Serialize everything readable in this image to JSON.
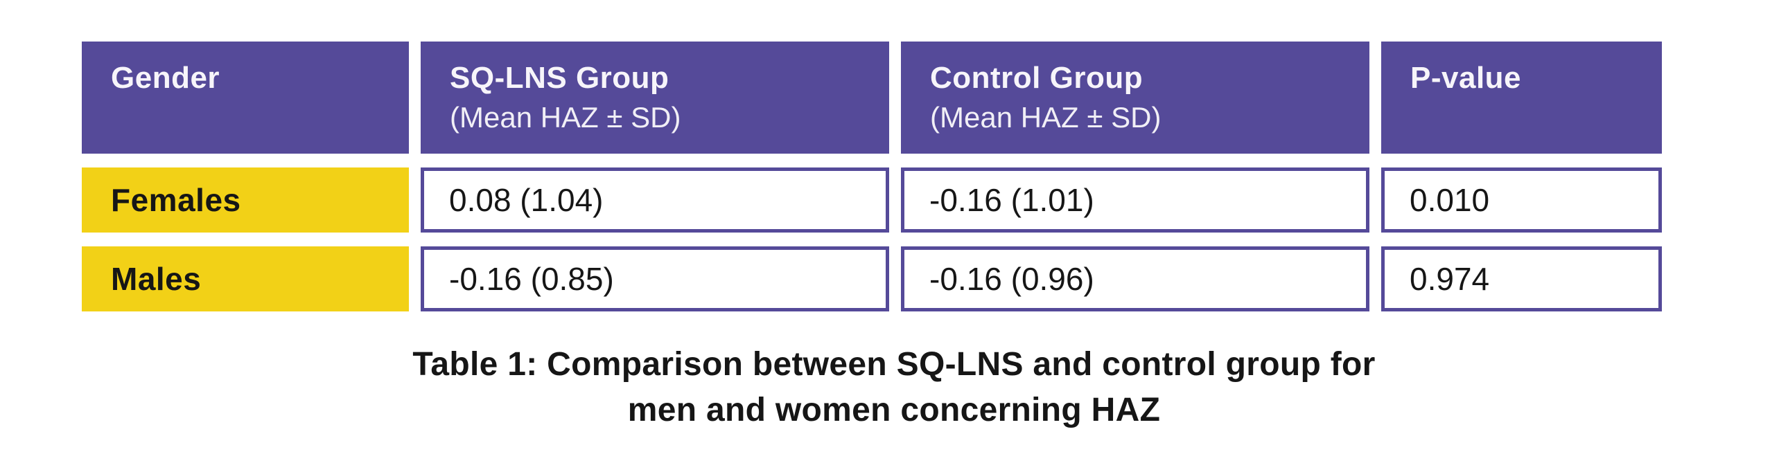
{
  "colors": {
    "page-bg": "#ffffff",
    "header-bg": "#554a99",
    "header-text": "#f7f5fa",
    "label-bg": "#f2d117",
    "cell-border": "#554a99",
    "text-dark": "#161616"
  },
  "table": {
    "headers": [
      {
        "title": "Gender",
        "subtitle": ""
      },
      {
        "title": "SQ-LNS Group",
        "subtitle": "(Mean HAZ ± SD)"
      },
      {
        "title": "Control Group",
        "subtitle": "(Mean HAZ ± SD)"
      },
      {
        "title": "P-value",
        "subtitle": ""
      }
    ],
    "rows": [
      {
        "label": "Females",
        "values": [
          "0.08 (1.04)",
          "-0.16 (1.01)",
          "0.010"
        ]
      },
      {
        "label": "Males",
        "values": [
          "-0.16 (0.85)",
          "-0.16 (0.96)",
          "0.974"
        ]
      }
    ]
  },
  "caption": {
    "line1": "Table 1: Comparison between SQ-LNS and control group for",
    "line2": "men and women concerning HAZ"
  },
  "chart_data": {
    "type": "table",
    "title": "Table 1: Comparison between SQ-LNS and control group for men and women concerning HAZ",
    "columns": [
      "Gender",
      "SQ-LNS Group (Mean HAZ ± SD)",
      "Control Group (Mean HAZ ± SD)",
      "P-value"
    ],
    "rows": [
      [
        "Females",
        "0.08 (1.04)",
        "-0.16 (1.01)",
        "0.010"
      ],
      [
        "Males",
        "-0.16 (0.85)",
        "-0.16 (0.96)",
        "0.974"
      ]
    ]
  }
}
